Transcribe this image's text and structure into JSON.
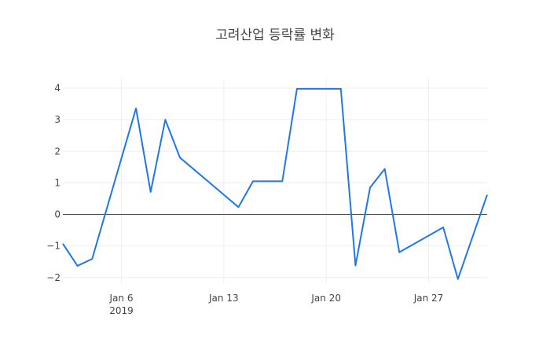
{
  "chart_data": {
    "type": "line",
    "title": "고려산업 등락률 변화",
    "xlabel": "",
    "ylabel": "",
    "x": [
      "2019-01-02",
      "2019-01-03",
      "2019-01-04",
      "2019-01-07",
      "2019-01-08",
      "2019-01-09",
      "2019-01-10",
      "2019-01-14",
      "2019-01-15",
      "2019-01-17",
      "2019-01-18",
      "2019-01-21",
      "2019-01-22",
      "2019-01-23",
      "2019-01-24",
      "2019-01-25",
      "2019-01-28",
      "2019-01-29",
      "2019-01-31"
    ],
    "series": [
      {
        "values": [
          -0.93,
          -1.63,
          -1.41,
          3.36,
          0.71,
          3.0,
          1.8,
          0.23,
          1.05,
          1.05,
          3.98,
          3.98,
          -1.62,
          0.85,
          1.44,
          -1.2,
          -0.41,
          -2.05,
          0.62
        ],
        "color": "#1f77e8"
      }
    ],
    "xlim": [
      "2019-01-02",
      "2019-01-31"
    ],
    "ylim": [
      -2.18,
      4.3
    ],
    "x_ticks": [
      {
        "date": "2019-01-06",
        "label": "Jan 6",
        "sublabel": "2019"
      },
      {
        "date": "2019-01-13",
        "label": "Jan 13"
      },
      {
        "date": "2019-01-20",
        "label": "Jan 20"
      },
      {
        "date": "2019-01-27",
        "label": "Jan 27"
      }
    ],
    "y_ticks": [
      {
        "value": 4,
        "label": "4"
      },
      {
        "value": 3,
        "label": "3"
      },
      {
        "value": 2,
        "label": "2"
      },
      {
        "value": 1,
        "label": "1"
      },
      {
        "value": 0,
        "label": "0"
      },
      {
        "value": -1,
        "label": "−1"
      },
      {
        "value": -2,
        "label": "−2"
      }
    ],
    "grid": true,
    "zero_line": true
  }
}
